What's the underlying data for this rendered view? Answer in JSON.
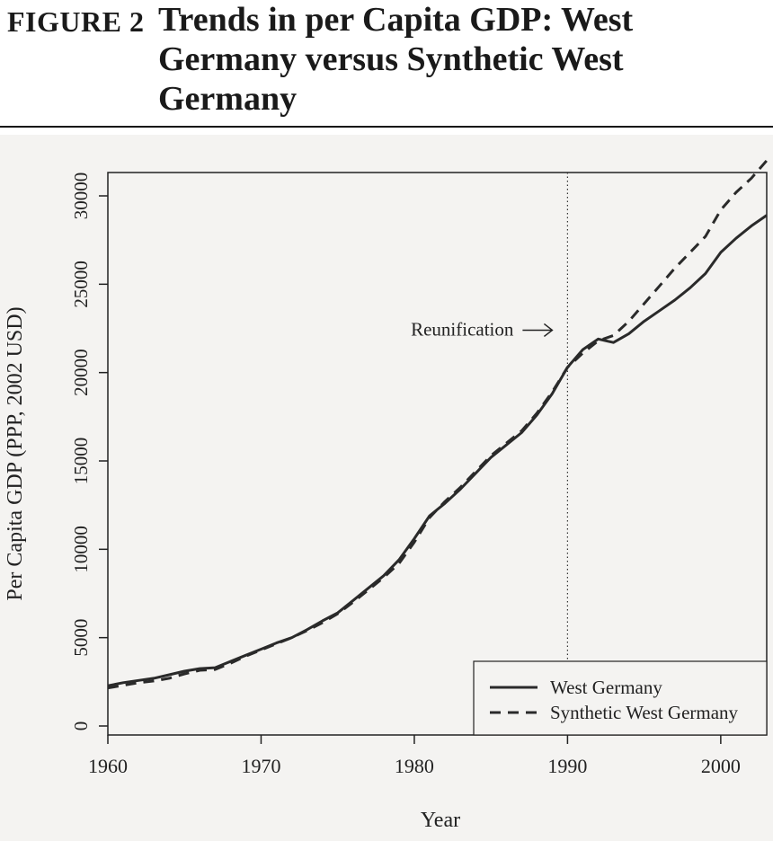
{
  "figure": {
    "label": "FIGURE 2",
    "title": "Trends in per Capita GDP: West Germany versus Synthetic West Germany"
  },
  "chart_data": {
    "type": "line",
    "xlabel": "Year",
    "ylabel": "Per Capita GDP (PPP, 2002 USD)",
    "xlim": [
      1960,
      2003
    ],
    "ylim": [
      0,
      30000
    ],
    "xticks": [
      1960,
      1970,
      1980,
      1990,
      2000
    ],
    "yticks": [
      0,
      5000,
      10000,
      15000,
      20000,
      25000,
      30000
    ],
    "grid": false,
    "legend_position": "bottom-right",
    "x": [
      1960,
      1961,
      1962,
      1963,
      1964,
      1965,
      1966,
      1967,
      1968,
      1969,
      1970,
      1971,
      1972,
      1973,
      1974,
      1975,
      1976,
      1977,
      1978,
      1979,
      1980,
      1981,
      1982,
      1983,
      1984,
      1985,
      1986,
      1987,
      1988,
      1989,
      1990,
      1991,
      1992,
      1993,
      1994,
      1995,
      1996,
      1997,
      1998,
      1999,
      2000,
      2001,
      2002,
      2003
    ],
    "series": [
      {
        "name": "West Germany",
        "style": "solid",
        "values": [
          2280,
          2450,
          2580,
          2700,
          2900,
          3100,
          3250,
          3300,
          3650,
          4000,
          4350,
          4700,
          5000,
          5450,
          5950,
          6400,
          7100,
          7800,
          8500,
          9400,
          10600,
          11900,
          12600,
          13400,
          14300,
          15200,
          15900,
          16600,
          17600,
          18800,
          20300,
          21300,
          21900,
          21700,
          22200,
          22900,
          23500,
          24100,
          24800,
          25600,
          26800,
          27600,
          28300,
          28900
        ]
      },
      {
        "name": "Synthetic West Germany",
        "style": "dashed",
        "values": [
          2150,
          2300,
          2450,
          2550,
          2700,
          2950,
          3150,
          3200,
          3550,
          3950,
          4300,
          4650,
          5000,
          5400,
          5850,
          6350,
          7000,
          7700,
          8400,
          9200,
          10400,
          11800,
          12700,
          13500,
          14400,
          15300,
          16000,
          16700,
          17700,
          18900,
          20300,
          21100,
          21800,
          22100,
          22900,
          23900,
          24900,
          25900,
          26800,
          27700,
          29200,
          30200,
          31000,
          32000
        ]
      }
    ],
    "annotations": [
      {
        "text": "Reunification",
        "x": 1990,
        "arrow": "right",
        "vline": true,
        "vline_style": "dotted"
      }
    ]
  }
}
